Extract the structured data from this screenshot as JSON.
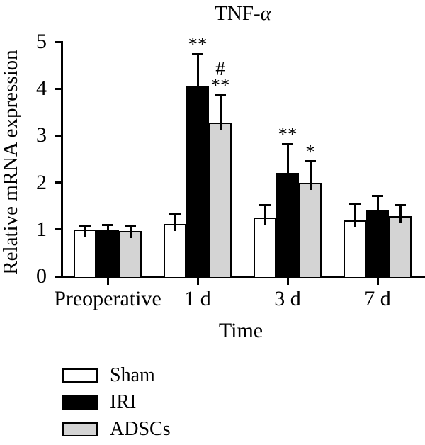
{
  "title": {
    "prefix": "TNF-",
    "alpha": "α"
  },
  "colors": {
    "background": "#ffffff",
    "axis": "#000000",
    "sham_fill": "#ffffff",
    "iri_fill": "#000000",
    "adscs_fill": "#d4d4d4"
  },
  "chart_data": {
    "type": "bar",
    "title": "TNF-α",
    "xlabel": "Time",
    "ylabel": "Relative mRNA expression",
    "categories": [
      "Preoperative",
      "1 d",
      "3 d",
      "7 d"
    ],
    "ylim": [
      0,
      5
    ],
    "yticks": [
      0,
      1,
      2,
      3,
      4,
      5
    ],
    "grid": false,
    "series": [
      {
        "name": "Sham",
        "fill": "#ffffff",
        "values": [
          1.0,
          1.12,
          1.25,
          1.2
        ],
        "errors_plus": [
          0.07,
          0.2,
          0.27,
          0.33
        ],
        "annotations": [
          [],
          [],
          [],
          []
        ]
      },
      {
        "name": "IRI",
        "fill": "#000000",
        "values": [
          1.0,
          4.07,
          2.2,
          1.4
        ],
        "errors_plus": [
          0.1,
          0.67,
          0.62,
          0.31
        ],
        "annotations": [
          [],
          [
            "**"
          ],
          [
            "**"
          ],
          []
        ]
      },
      {
        "name": "ADSCs",
        "fill": "#d4d4d4",
        "values": [
          0.96,
          3.28,
          2.0,
          1.28
        ],
        "errors_plus": [
          0.12,
          0.58,
          0.45,
          0.24
        ],
        "annotations": [
          [],
          [
            "#",
            "**"
          ],
          [
            "*"
          ],
          []
        ]
      }
    ],
    "legend": {
      "position": "bottom-left",
      "entries": [
        "Sham",
        "IRI",
        "ADSCs"
      ]
    }
  }
}
